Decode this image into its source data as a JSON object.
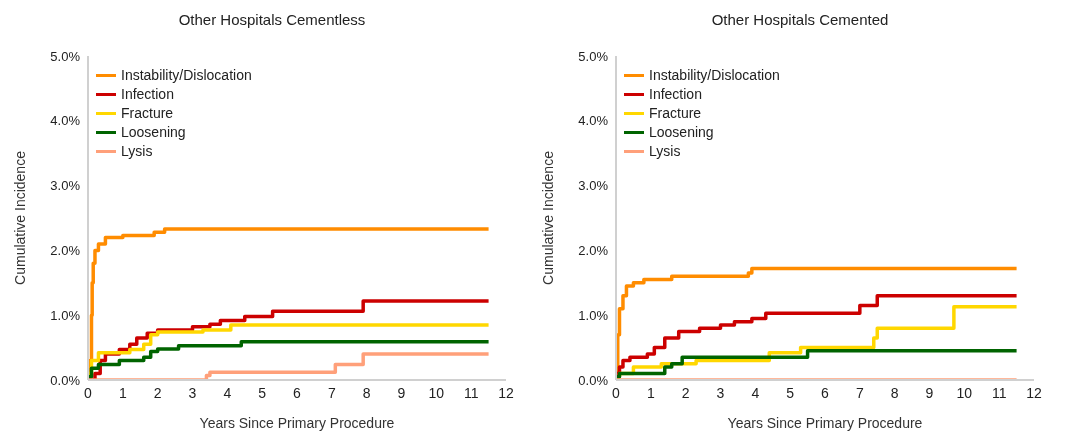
{
  "chart_data": [
    {
      "type": "step",
      "title": "Other Hospitals Cementless",
      "xlabel": "Years Since Primary Procedure",
      "ylabel": "Cumulative Incidence",
      "xlim": [
        0,
        12
      ],
      "xticks": [
        0,
        1,
        2,
        3,
        4,
        5,
        6,
        7,
        8,
        9,
        10,
        11,
        12
      ],
      "ylim": [
        0,
        5
      ],
      "yticks": [
        {
          "value": 0,
          "label": "0.0%"
        },
        {
          "value": 1,
          "label": "1.0%"
        },
        {
          "value": 2,
          "label": "2.0%"
        },
        {
          "value": 3,
          "label": "3.0%"
        },
        {
          "value": 4,
          "label": "4.0%"
        },
        {
          "value": 5,
          "label": "5.0%"
        }
      ],
      "grid": false,
      "legend": "top left",
      "marker": "none",
      "line_style": "solid",
      "series": [
        {
          "name": "Instability/Dislocation",
          "color": "#ff8c00",
          "x": [
            0,
            0.05,
            0.1,
            0.12,
            0.15,
            0.2,
            0.3,
            0.5,
            1.0,
            1.9,
            2.2,
            11.5
          ],
          "values": [
            0,
            0.3,
            1.0,
            1.5,
            1.8,
            2.0,
            2.1,
            2.2,
            2.23,
            2.28,
            2.33,
            2.33
          ]
        },
        {
          "name": "Infection",
          "color": "#cc0000",
          "x": [
            0,
            0.2,
            0.35,
            0.5,
            0.9,
            1.2,
            1.4,
            1.7,
            2.0,
            3.0,
            3.5,
            3.8,
            4.5,
            5.3,
            7.9,
            11.5
          ],
          "values": [
            0,
            0.1,
            0.3,
            0.4,
            0.47,
            0.55,
            0.65,
            0.72,
            0.77,
            0.82,
            0.86,
            0.92,
            0.98,
            1.06,
            1.22,
            1.22
          ]
        },
        {
          "name": "Fracture",
          "color": "#ffd700",
          "x": [
            0,
            0.1,
            0.3,
            1.2,
            1.6,
            1.8,
            2.0,
            3.3,
            4.1,
            11.5
          ],
          "values": [
            0.1,
            0.3,
            0.42,
            0.47,
            0.55,
            0.7,
            0.74,
            0.77,
            0.85,
            0.85
          ]
        },
        {
          "name": "Loosening",
          "color": "#006400",
          "x": [
            0,
            0.1,
            0.3,
            0.9,
            1.6,
            1.8,
            2.0,
            2.6,
            4.4,
            11.5
          ],
          "values": [
            0.05,
            0.18,
            0.24,
            0.3,
            0.35,
            0.44,
            0.48,
            0.53,
            0.59,
            0.59
          ]
        },
        {
          "name": "Lysis",
          "color": "#ffa07a",
          "x": [
            0,
            3.4,
            3.5,
            7.1,
            7.9,
            11.5
          ],
          "values": [
            0,
            0.07,
            0.12,
            0.24,
            0.4,
            0.4
          ]
        }
      ]
    },
    {
      "type": "step",
      "title": "Other Hospitals Cemented",
      "xlabel": "Years Since Primary Procedure",
      "ylabel": "Cumulative Incidence",
      "xlim": [
        0,
        12
      ],
      "xticks": [
        0,
        1,
        2,
        3,
        4,
        5,
        6,
        7,
        8,
        9,
        10,
        11,
        12
      ],
      "ylim": [
        0,
        5
      ],
      "yticks": [
        {
          "value": 0,
          "label": "0.0%"
        },
        {
          "value": 1,
          "label": "1.0%"
        },
        {
          "value": 2,
          "label": "2.0%"
        },
        {
          "value": 3,
          "label": "3.0%"
        },
        {
          "value": 4,
          "label": "4.0%"
        },
        {
          "value": 5,
          "label": "5.0%"
        }
      ],
      "grid": false,
      "legend": "top left",
      "marker": "none",
      "line_style": "solid",
      "series": [
        {
          "name": "Instability/Dislocation",
          "color": "#ff8c00",
          "x": [
            0,
            0.05,
            0.1,
            0.2,
            0.3,
            0.5,
            0.8,
            1.6,
            3.8,
            3.9,
            11.5
          ],
          "values": [
            0,
            0.7,
            1.1,
            1.3,
            1.45,
            1.5,
            1.55,
            1.6,
            1.65,
            1.72,
            1.72
          ]
        },
        {
          "name": "Infection",
          "color": "#cc0000",
          "x": [
            0,
            0.1,
            0.2,
            0.4,
            0.9,
            1.1,
            1.4,
            1.8,
            2.4,
            3.0,
            3.4,
            3.9,
            4.3,
            7.0,
            7.5,
            11.5
          ],
          "values": [
            0.1,
            0.2,
            0.3,
            0.35,
            0.4,
            0.5,
            0.65,
            0.75,
            0.8,
            0.85,
            0.9,
            0.95,
            1.03,
            1.15,
            1.3,
            1.3
          ]
        },
        {
          "name": "Fracture",
          "color": "#ffd700",
          "x": [
            0,
            0.1,
            0.5,
            1.3,
            2.3,
            4.4,
            5.3,
            7.4,
            7.5,
            9.7,
            11.5
          ],
          "values": [
            0.05,
            0.1,
            0.2,
            0.25,
            0.3,
            0.42,
            0.5,
            0.65,
            0.8,
            1.13,
            1.13
          ]
        },
        {
          "name": "Loosening",
          "color": "#006400",
          "x": [
            0,
            0.1,
            1.4,
            1.6,
            1.9,
            5.5,
            11.5
          ],
          "values": [
            0.05,
            0.1,
            0.2,
            0.25,
            0.35,
            0.45,
            0.45
          ]
        },
        {
          "name": "Lysis",
          "color": "#ffa07a",
          "x": [
            0,
            11.5
          ],
          "values": [
            0,
            0
          ]
        }
      ]
    }
  ]
}
